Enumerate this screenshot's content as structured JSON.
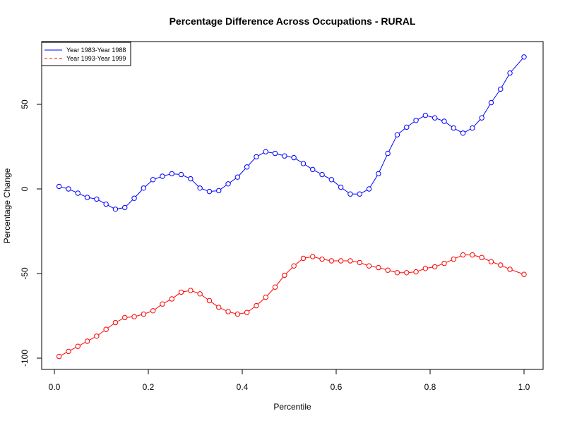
{
  "chart_data": {
    "type": "line",
    "title": "Percentage Difference Across Occupations - RURAL",
    "xlabel": "Percentile",
    "ylabel": "Percentage Change",
    "xlim": [
      0,
      1
    ],
    "ylim": [
      -100,
      80
    ],
    "x_ticks": [
      "0.0",
      "0.2",
      "0.4",
      "0.6",
      "0.8",
      "1.0"
    ],
    "y_ticks": [
      "-100",
      "-50",
      "0",
      "50"
    ],
    "legend_position": "top-left",
    "grid": false,
    "x": [
      0.01,
      0.03,
      0.05,
      0.07,
      0.09,
      0.11,
      0.13,
      0.15,
      0.17,
      0.19,
      0.21,
      0.23,
      0.25,
      0.27,
      0.29,
      0.31,
      0.33,
      0.35,
      0.37,
      0.39,
      0.41,
      0.43,
      0.45,
      0.47,
      0.49,
      0.51,
      0.53,
      0.55,
      0.57,
      0.59,
      0.61,
      0.63,
      0.65,
      0.67,
      0.69,
      0.71,
      0.73,
      0.75,
      0.77,
      0.79,
      0.81,
      0.83,
      0.85,
      0.87,
      0.89,
      0.91,
      0.93,
      0.95,
      0.97,
      1.0
    ],
    "series": [
      {
        "name": "Year 1983-Year 1988",
        "color": "#0000ff",
        "line_style": "solid",
        "values": [
          1.5,
          0.0,
          -2.5,
          -5.0,
          -6.0,
          -9.0,
          -12.0,
          -11.0,
          -5.5,
          0.5,
          5.5,
          7.5,
          9.0,
          8.5,
          6.0,
          0.5,
          -1.5,
          -1.0,
          3.0,
          7.0,
          13.0,
          19.0,
          22.0,
          21.0,
          19.5,
          18.5,
          15.0,
          11.5,
          8.5,
          5.5,
          1.0,
          -3.0,
          -3.0,
          0.0,
          9.0,
          21.0,
          32.0,
          36.5,
          40.5,
          43.5,
          42.0,
          40.0,
          36.0,
          33.0,
          36.0,
          42.0,
          51.0,
          59.0,
          68.5,
          78.0
        ]
      },
      {
        "name": "Year 1993-Year 1999",
        "color": "#ff0000",
        "line_style": "dashed",
        "values": [
          -99.0,
          -96.0,
          -93.0,
          -90.0,
          -87.0,
          -83.0,
          -79.0,
          -76.0,
          -75.5,
          -74.0,
          -72.0,
          -68.0,
          -65.0,
          -61.0,
          -60.0,
          -62.0,
          -66.0,
          -70.0,
          -72.5,
          -74.0,
          -73.0,
          -69.0,
          -64.0,
          -58.0,
          -51.0,
          -45.5,
          -41.0,
          -40.0,
          -41.5,
          -42.5,
          -42.5,
          -42.5,
          -43.5,
          -45.5,
          -46.5,
          -48.0,
          -49.5,
          -49.5,
          -49.0,
          -47.0,
          -46.0,
          -44.0,
          -41.5,
          -39.0,
          -39.0,
          -40.5,
          -43.0,
          -45.0,
          -47.5,
          -50.5
        ]
      }
    ]
  }
}
